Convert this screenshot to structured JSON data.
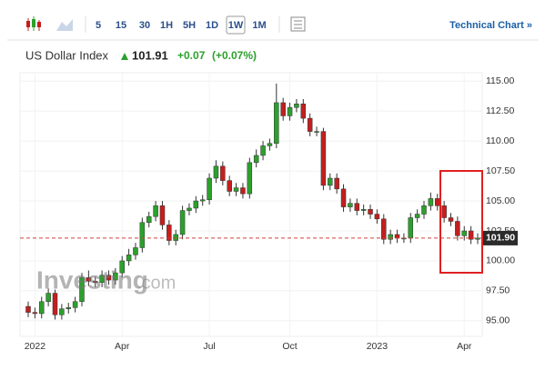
{
  "toolbar": {
    "intervals": [
      "5",
      "15",
      "30",
      "1H",
      "5H",
      "1D",
      "1W",
      "1M"
    ],
    "technical_chart": "Technical Chart »"
  },
  "quote": {
    "instrument": "US Dollar Index",
    "price": "101.91",
    "change": "+0.07",
    "change_percent": "(+0.07%)"
  },
  "watermark": [
    "Investing",
    ".com"
  ],
  "chart_data": {
    "type": "candlestick",
    "categories": [
      null,
      "2022",
      null,
      null,
      null,
      null,
      null,
      null,
      null,
      null,
      null,
      null,
      null,
      null,
      "Apr",
      null,
      null,
      null,
      null,
      null,
      null,
      null,
      null,
      null,
      null,
      null,
      null,
      "Jul",
      null,
      null,
      null,
      null,
      null,
      null,
      null,
      null,
      null,
      null,
      null,
      "Oct",
      null,
      null,
      null,
      null,
      null,
      null,
      null,
      null,
      null,
      null,
      null,
      null,
      "2023",
      null,
      null,
      null,
      null,
      null,
      null,
      null,
      null,
      null,
      null,
      null,
      null,
      "Apr",
      null,
      null
    ],
    "open": [
      96.2,
      95.7,
      95.6,
      96.6,
      97.3,
      95.5,
      96.0,
      96.1,
      96.6,
      98.6,
      98.3,
      98.2,
      98.8,
      98.4,
      99.0,
      100.0,
      100.5,
      101.1,
      103.2,
      103.7,
      104.6,
      103.0,
      101.7,
      102.2,
      104.2,
      104.4,
      105.0,
      105.1,
      106.9,
      107.9,
      106.7,
      105.8,
      106.1,
      105.6,
      108.2,
      108.8,
      109.6,
      109.8,
      113.2,
      112.1,
      112.8,
      113.1,
      111.9,
      110.8,
      110.8,
      106.3,
      106.9,
      106.0,
      104.5,
      104.8,
      104.2,
      104.3,
      103.9,
      103.5,
      101.8,
      102.2,
      101.9,
      101.9,
      103.6,
      103.9,
      104.6,
      105.2,
      104.6,
      103.6,
      103.3,
      102.1,
      102.5,
      101.8
    ],
    "high": [
      96.6,
      96.1,
      97.0,
      97.7,
      97.6,
      96.4,
      96.5,
      97.0,
      99.0,
      99.2,
      98.7,
      99.2,
      99.2,
      99.4,
      100.4,
      101.0,
      101.5,
      103.6,
      104.1,
      105.0,
      105.0,
      103.4,
      102.6,
      104.6,
      104.8,
      105.4,
      105.5,
      107.3,
      108.4,
      108.3,
      107.1,
      106.5,
      106.5,
      108.6,
      109.3,
      110.0,
      110.2,
      114.8,
      113.6,
      113.2,
      113.5,
      113.5,
      112.3,
      111.2,
      111.1,
      107.3,
      107.3,
      106.4,
      105.2,
      105.2,
      104.7,
      104.7,
      104.3,
      103.9,
      102.6,
      102.6,
      102.3,
      104.0,
      104.3,
      105.0,
      105.7,
      105.6,
      105.0,
      104.0,
      103.7,
      102.9,
      102.9,
      102.3
    ],
    "low": [
      95.3,
      95.2,
      95.2,
      96.2,
      95.1,
      95.1,
      95.6,
      95.7,
      96.2,
      97.9,
      97.8,
      97.8,
      98.0,
      98.0,
      98.6,
      99.6,
      100.1,
      100.7,
      102.8,
      103.3,
      102.6,
      101.3,
      101.3,
      101.8,
      103.8,
      104.0,
      104.6,
      104.7,
      106.5,
      106.3,
      105.4,
      105.4,
      105.2,
      105.2,
      107.8,
      108.4,
      109.2,
      109.4,
      111.7,
      111.7,
      112.4,
      111.5,
      110.4,
      110.4,
      105.9,
      105.9,
      105.6,
      104.1,
      104.1,
      103.8,
      103.8,
      103.5,
      103.1,
      101.4,
      101.4,
      101.5,
      101.5,
      101.5,
      103.2,
      103.5,
      104.2,
      104.2,
      103.2,
      102.9,
      101.7,
      101.7,
      101.4,
      101.4
    ],
    "close": [
      95.7,
      95.6,
      96.6,
      97.3,
      95.5,
      96.0,
      96.1,
      96.6,
      98.6,
      98.3,
      98.2,
      98.8,
      98.4,
      99.0,
      100.0,
      100.5,
      101.1,
      103.2,
      103.7,
      104.6,
      103.0,
      101.7,
      102.2,
      104.2,
      104.4,
      105.0,
      105.1,
      106.9,
      107.9,
      106.7,
      105.8,
      106.1,
      105.6,
      108.2,
      108.8,
      109.6,
      109.8,
      113.2,
      112.1,
      112.8,
      113.1,
      111.9,
      110.8,
      110.8,
      106.3,
      106.9,
      106.0,
      104.5,
      104.8,
      104.2,
      104.3,
      103.9,
      103.5,
      101.8,
      102.2,
      101.9,
      101.9,
      103.6,
      103.9,
      104.6,
      105.2,
      104.6,
      103.6,
      103.3,
      102.1,
      102.5,
      101.8,
      101.9
    ],
    "up_color": "#2ca02c",
    "down_color": "#c41e1e",
    "current_price": {
      "value": 101.9,
      "label": "101.90"
    },
    "ylim": [
      93.7,
      115.7
    ],
    "yticks": [
      {
        "value": 95,
        "label": "95.00"
      },
      {
        "value": 97.5,
        "label": "97.50"
      },
      {
        "value": 100,
        "label": "100.00"
      },
      {
        "value": 102.5,
        "label": "102.50"
      },
      {
        "value": 105,
        "label": "105.00"
      },
      {
        "value": 107.5,
        "label": "107.50"
      },
      {
        "value": 110,
        "label": "110.00"
      },
      {
        "value": 112.5,
        "label": "112.50"
      },
      {
        "value": 115,
        "label": "115.00"
      }
    ],
    "grid": true
  }
}
